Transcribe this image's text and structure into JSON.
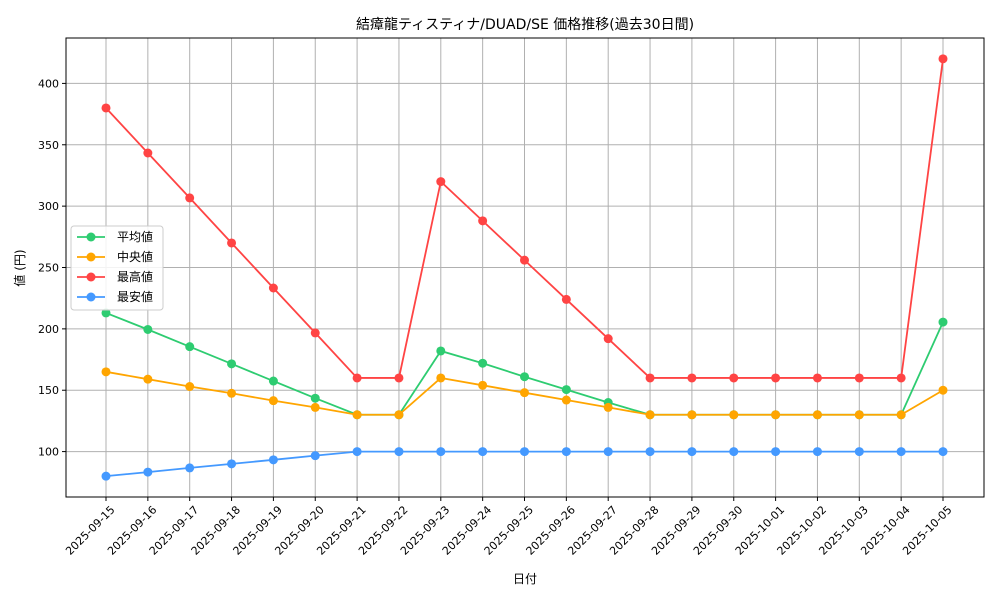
{
  "chart_data": {
    "type": "line",
    "title": "結瘴龍ティスティナ/DUAD/SE 価格推移(過去30日間)",
    "xlabel": "日付",
    "ylabel": "値 (円)",
    "ylim": [
      63,
      437
    ],
    "yticks": [
      100,
      150,
      200,
      250,
      300,
      350,
      400
    ],
    "grid": true,
    "legend_position": "center-left",
    "categories": [
      "2025-09-15",
      "2025-09-16",
      "2025-09-17",
      "2025-09-18",
      "2025-09-19",
      "2025-09-20",
      "2025-09-21",
      "2025-09-22",
      "2025-09-23",
      "2025-09-24",
      "2025-09-25",
      "2025-09-26",
      "2025-09-27",
      "2025-09-28",
      "2025-09-29",
      "2025-09-30",
      "2025-10-01",
      "2025-10-02",
      "2025-10-03",
      "2025-10-04",
      "2025-10-05"
    ],
    "series": [
      {
        "name": "平均値",
        "color": "#2ecc71",
        "values": [
          213,
          199.5,
          185.5,
          171.5,
          157.5,
          143.5,
          130,
          130,
          182,
          172,
          161,
          150.5,
          140,
          130,
          130,
          130,
          130,
          130,
          130,
          130,
          205.5
        ]
      },
      {
        "name": "中央値",
        "color": "#ffa500",
        "values": [
          165,
          159,
          153,
          147.5,
          141.5,
          136,
          130,
          130,
          160,
          154,
          148,
          142,
          136,
          130,
          130,
          130,
          130,
          130,
          130,
          130,
          150
        ]
      },
      {
        "name": "最高値",
        "color": "#ff4444",
        "values": [
          380,
          343.3,
          306.7,
          270,
          233.3,
          196.7,
          160,
          160,
          320,
          288,
          256,
          224,
          192,
          160,
          160,
          160,
          160,
          160,
          160,
          160,
          420
        ]
      },
      {
        "name": "最安値",
        "color": "#4499ff",
        "values": [
          80,
          83.3,
          86.7,
          90,
          93.3,
          96.7,
          100,
          100,
          100,
          100,
          100,
          100,
          100,
          100,
          100,
          100,
          100,
          100,
          100,
          100,
          100
        ]
      }
    ]
  }
}
